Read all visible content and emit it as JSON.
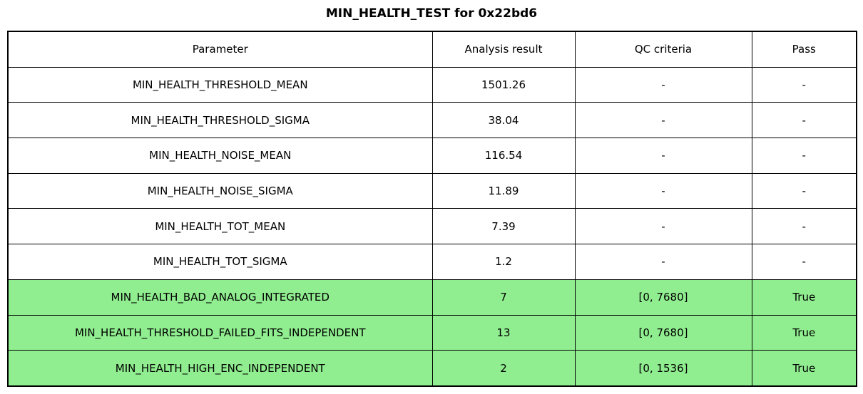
{
  "title": "MIN_HEALTH_TEST for 0x22bd6",
  "colors": {
    "pass_row_bg": "#90EE90",
    "border": "#000000",
    "background": "#FFFFFF"
  },
  "chart_data": {
    "type": "table",
    "title": "MIN_HEALTH_TEST for 0x22bd6",
    "columns": [
      "Parameter",
      "Analysis result",
      "QC criteria",
      "Pass"
    ],
    "rows": [
      {
        "parameter": "MIN_HEALTH_THRESHOLD_MEAN",
        "analysis_result": "1501.26",
        "qc_criteria": "-",
        "pass": "-",
        "highlighted": false
      },
      {
        "parameter": "MIN_HEALTH_THRESHOLD_SIGMA",
        "analysis_result": "38.04",
        "qc_criteria": "-",
        "pass": "-",
        "highlighted": false
      },
      {
        "parameter": "MIN_HEALTH_NOISE_MEAN",
        "analysis_result": "116.54",
        "qc_criteria": "-",
        "pass": "-",
        "highlighted": false
      },
      {
        "parameter": "MIN_HEALTH_NOISE_SIGMA",
        "analysis_result": "11.89",
        "qc_criteria": "-",
        "pass": "-",
        "highlighted": false
      },
      {
        "parameter": "MIN_HEALTH_TOT_MEAN",
        "analysis_result": "7.39",
        "qc_criteria": "-",
        "pass": "-",
        "highlighted": false
      },
      {
        "parameter": "MIN_HEALTH_TOT_SIGMA",
        "analysis_result": "1.2",
        "qc_criteria": "-",
        "pass": "-",
        "highlighted": false
      },
      {
        "parameter": "MIN_HEALTH_BAD_ANALOG_INTEGRATED",
        "analysis_result": "7",
        "qc_criteria": "[0, 7680]",
        "pass": "True",
        "highlighted": true
      },
      {
        "parameter": "MIN_HEALTH_THRESHOLD_FAILED_FITS_INDEPENDENT",
        "analysis_result": "13",
        "qc_criteria": "[0, 7680]",
        "pass": "True",
        "highlighted": true
      },
      {
        "parameter": "MIN_HEALTH_HIGH_ENC_INDEPENDENT",
        "analysis_result": "2",
        "qc_criteria": "[0, 1536]",
        "pass": "True",
        "highlighted": true
      }
    ]
  }
}
